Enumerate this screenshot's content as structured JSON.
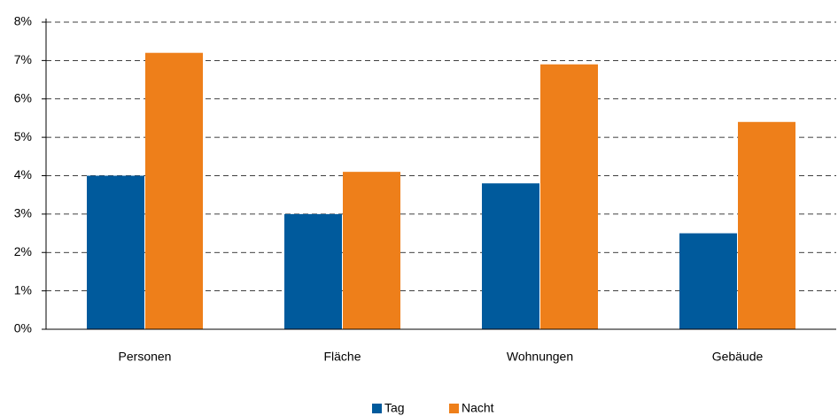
{
  "chart_data": {
    "type": "bar",
    "categories": [
      "Personen",
      "Fläche",
      "Wohnungen",
      "Gebäude"
    ],
    "series": [
      {
        "name": "Tag",
        "color": "#005a9c",
        "values": [
          4.0,
          3.0,
          3.8,
          2.5
        ]
      },
      {
        "name": "Nacht",
        "color": "#ee7f1a",
        "values": [
          7.2,
          4.1,
          6.9,
          5.4
        ]
      }
    ],
    "ylim": [
      0,
      8
    ],
    "yticks": [
      {
        "value": 0,
        "label": "0%"
      },
      {
        "value": 1,
        "label": "1%"
      },
      {
        "value": 2,
        "label": "2%"
      },
      {
        "value": 3,
        "label": "3%"
      },
      {
        "value": 4,
        "label": "4%"
      },
      {
        "value": 5,
        "label": "5%"
      },
      {
        "value": 6,
        "label": "6%"
      },
      {
        "value": 7,
        "label": "7%"
      },
      {
        "value": 8,
        "label": "8%"
      }
    ],
    "grid": true,
    "legend": "bottom"
  }
}
